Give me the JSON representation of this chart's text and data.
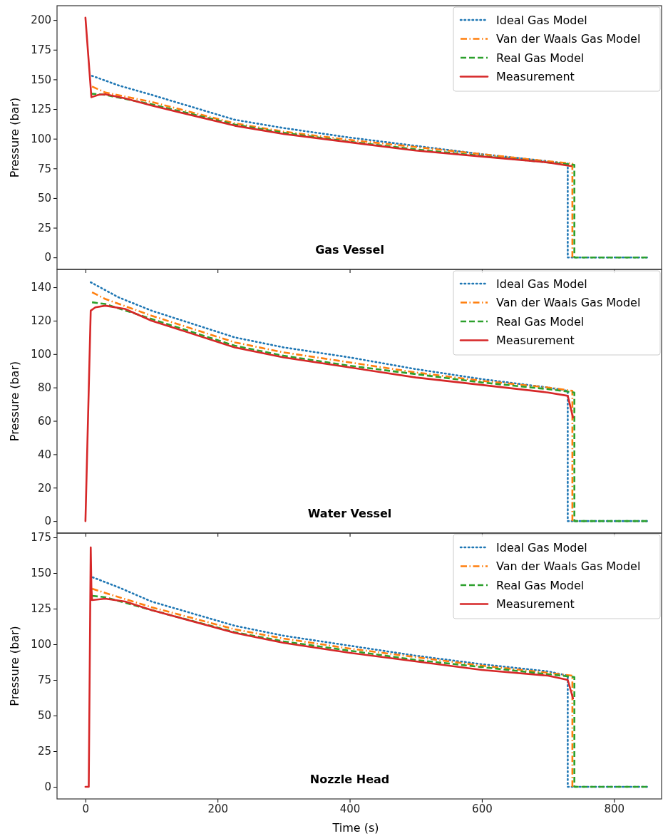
{
  "chart_data": [
    {
      "type": "line",
      "annotations": [
        "Gas Vessel"
      ],
      "ylabel": "Pressure (bar)",
      "xlim": [
        -43,
        872
      ],
      "xticks": [
        0,
        200,
        400,
        600,
        800
      ],
      "ylim": [
        -10.1,
        212.1
      ],
      "yticks": [
        0,
        25,
        50,
        75,
        100,
        125,
        150,
        175,
        200
      ],
      "tick_labels": "y",
      "legend": "top right",
      "grid": false,
      "series": [
        {
          "name": "Ideal Gas Model",
          "color": "#1f77b4",
          "line_style": "dotted",
          "x": [
            10,
            50,
            100,
            226,
            300,
            400,
            500,
            600,
            700,
            730,
            730,
            850
          ],
          "values": [
            153,
            145,
            137,
            116,
            109,
            101,
            94,
            87,
            81,
            79,
            0,
            0
          ]
        },
        {
          "name": "Van der Waals Gas Model",
          "color": "#ff7f0e",
          "line_style": "dashdot",
          "x": [
            10,
            30,
            100,
            226,
            300,
            400,
            500,
            600,
            700,
            737,
            737
          ],
          "values": [
            144,
            139,
            131,
            113,
            106,
            99,
            93,
            87,
            81,
            79,
            0
          ]
        },
        {
          "name": "Real Gas Model",
          "color": "#2ca02c",
          "line_style": "dashed",
          "x": [
            8,
            30,
            100,
            226,
            300,
            400,
            500,
            600,
            700,
            740,
            740,
            850
          ],
          "values": [
            138,
            137,
            129,
            112,
            105,
            97.5,
            91,
            85.5,
            80,
            78,
            0,
            0
          ]
        },
        {
          "name": "Measurement",
          "color": "#d62728",
          "line_style": "solid",
          "x": [
            0,
            9,
            20,
            30,
            60,
            100,
            226,
            300,
            400,
            500,
            600,
            700,
            735
          ],
          "values": [
            202,
            135,
            137,
            137.5,
            134,
            128,
            111,
            104,
            97,
            90,
            85,
            80,
            77
          ]
        }
      ]
    },
    {
      "type": "line",
      "annotations": [
        "Water Vessel"
      ],
      "ylabel": "Pressure (bar)",
      "xlim": [
        -43,
        872
      ],
      "xticks": [
        0,
        200,
        400,
        600,
        800
      ],
      "ylim": [
        -7.2,
        150.7
      ],
      "yticks": [
        0,
        20,
        40,
        60,
        80,
        100,
        120,
        140
      ],
      "tick_labels": "y",
      "legend": "top right",
      "grid": false,
      "series": [
        {
          "name": "Ideal Gas Model",
          "color": "#1f77b4",
          "line_style": "dotted",
          "x": [
            8,
            50,
            100,
            226,
            300,
            400,
            500,
            600,
            700,
            730,
            730,
            850
          ],
          "values": [
            143,
            134,
            126,
            110,
            104,
            98,
            91,
            85,
            80,
            78,
            0,
            0
          ]
        },
        {
          "name": "Van der Waals Gas Model",
          "color": "#ff7f0e",
          "line_style": "dashdot",
          "x": [
            10,
            30,
            100,
            226,
            300,
            400,
            500,
            600,
            700,
            737,
            737
          ],
          "values": [
            137,
            133,
            123,
            107,
            101,
            95,
            89,
            84,
            80,
            78,
            0
          ]
        },
        {
          "name": "Real Gas Model",
          "color": "#2ca02c",
          "line_style": "dashed",
          "x": [
            10,
            30,
            100,
            226,
            300,
            400,
            500,
            600,
            700,
            740,
            740,
            850
          ],
          "values": [
            131,
            130,
            121,
            105,
            99,
            93,
            88,
            83,
            79,
            77,
            0,
            0
          ]
        },
        {
          "name": "Measurement",
          "color": "#d62728",
          "line_style": "solid",
          "x": [
            0,
            8,
            15,
            30,
            60,
            100,
            226,
            300,
            400,
            500,
            600,
            700,
            730,
            738
          ],
          "values": [
            0,
            126,
            128,
            129,
            127,
            120,
            104,
            98,
            92,
            86,
            81.5,
            77,
            75,
            62
          ]
        }
      ]
    },
    {
      "type": "line",
      "annotations": [
        "Nozzle Head"
      ],
      "xlabel": "Time (s)",
      "ylabel": "Pressure (bar)",
      "xlim": [
        -43,
        872
      ],
      "xticks": [
        0,
        200,
        400,
        600,
        800
      ],
      "ylim": [
        -8.5,
        178
      ],
      "yticks": [
        0,
        25,
        50,
        75,
        100,
        125,
        150,
        175
      ],
      "legend": "top right",
      "grid": false,
      "series": [
        {
          "name": "Ideal Gas Model",
          "color": "#1f77b4",
          "line_style": "dotted",
          "x": [
            11,
            50,
            100,
            226,
            300,
            400,
            500,
            600,
            700,
            730,
            730,
            850
          ],
          "values": [
            147,
            140,
            130,
            113,
            106,
            99,
            92,
            86,
            81,
            78,
            0,
            0
          ]
        },
        {
          "name": "Van der Waals Gas Model",
          "color": "#ff7f0e",
          "line_style": "dashdot",
          "x": [
            10,
            30,
            100,
            226,
            300,
            400,
            500,
            600,
            700,
            737,
            737
          ],
          "values": [
            139,
            136,
            126,
            110.5,
            104,
            97,
            91,
            85,
            80,
            78,
            0
          ]
        },
        {
          "name": "Real Gas Model",
          "color": "#2ca02c",
          "line_style": "dashed",
          "x": [
            10,
            30,
            100,
            226,
            300,
            400,
            500,
            600,
            700,
            740,
            740,
            850
          ],
          "values": [
            134,
            133,
            124,
            108.5,
            102,
            95.5,
            89,
            84,
            79,
            77,
            0,
            0
          ]
        },
        {
          "name": "Measurement",
          "color": "#d62728",
          "line_style": "solid",
          "x": [
            0,
            5,
            8,
            9,
            10,
            30,
            60,
            100,
            226,
            300,
            400,
            500,
            600,
            700,
            730,
            738
          ],
          "values": [
            0,
            0,
            168,
            140,
            131,
            132,
            130,
            124,
            108,
            101,
            94,
            88,
            82,
            78,
            75,
            62
          ]
        }
      ]
    }
  ]
}
